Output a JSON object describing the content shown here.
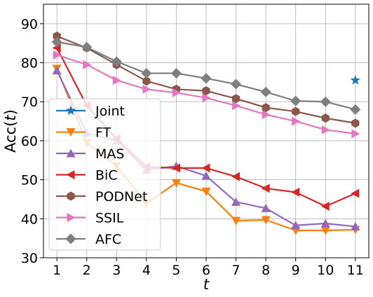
{
  "chart_data": {
    "type": "line",
    "xlabel": "t",
    "ylabel_prefix": "Acc(",
    "ylabel_var": "t",
    "ylabel_suffix": ")",
    "x": [
      1,
      2,
      3,
      4,
      5,
      6,
      7,
      8,
      9,
      10,
      11
    ],
    "x_ticks": [
      "1",
      "2",
      "3",
      "4",
      "5",
      "6",
      "7",
      "8",
      "9",
      "10",
      "11"
    ],
    "y_ticks": [
      "30",
      "40",
      "50",
      "60",
      "70",
      "80",
      "90"
    ],
    "xlim": [
      0.55,
      11.45
    ],
    "ylim": [
      30,
      95
    ],
    "grid": true,
    "legend_position": "center-left",
    "series": [
      {
        "name": "Joint",
        "color": "#1f77b4",
        "marker": "star",
        "show_line": false,
        "x": [
          11
        ],
        "values": [
          75.5
        ]
      },
      {
        "name": "FT",
        "color": "#ff7f0e",
        "marker": "triangle-down",
        "values": [
          78.5,
          59.5,
          53.5,
          44.0,
          49.2,
          47.0,
          39.5,
          39.7,
          37.0,
          37.0,
          37.2
        ]
      },
      {
        "name": "MAS",
        "color": "#9467bd",
        "marker": "triangle-up",
        "values": [
          78.0,
          62.0,
          60.0,
          52.5,
          53.5,
          51.0,
          44.3,
          42.7,
          38.3,
          38.8,
          38.0
        ]
      },
      {
        "name": "BiC",
        "color": "#d62728",
        "marker": "triangle-left",
        "values": [
          83.8,
          69.0,
          60.5,
          53.3,
          53.0,
          53.0,
          50.8,
          47.8,
          46.8,
          43.2,
          46.5
        ]
      },
      {
        "name": "PODNet",
        "color": "#8c564b",
        "marker": "hexagon",
        "values": [
          86.8,
          83.8,
          79.5,
          75.3,
          73.2,
          72.8,
          70.8,
          68.5,
          67.5,
          65.8,
          64.5
        ]
      },
      {
        "name": "SSIL",
        "color": "#e377c2",
        "marker": "triangle-right",
        "values": [
          82.0,
          79.5,
          75.5,
          73.2,
          72.3,
          71.0,
          69.0,
          66.7,
          65.0,
          62.8,
          61.8
        ]
      },
      {
        "name": "AFC",
        "color": "#7f7f7f",
        "marker": "diamond",
        "values": [
          85.3,
          84.0,
          80.3,
          77.3,
          77.3,
          76.0,
          74.5,
          72.5,
          70.2,
          70.0,
          68.0
        ]
      }
    ]
  }
}
